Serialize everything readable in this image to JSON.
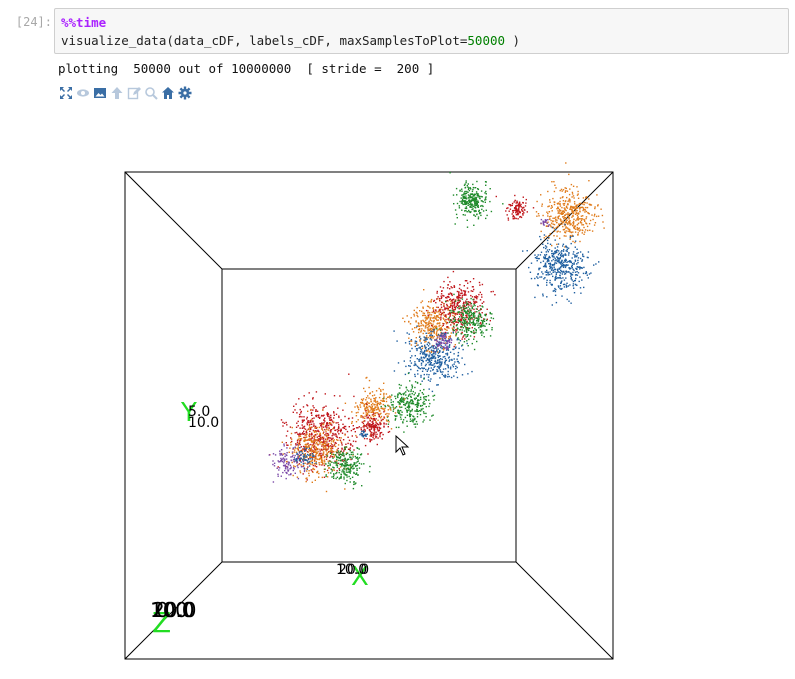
{
  "cell": {
    "prompt": "[24]:",
    "magic": "%%time",
    "code_prefix": "visualize_data(data_cDF, labels_cDF, maxSamplesToPlot=",
    "code_number": "50000",
    "code_suffix": " )"
  },
  "output": {
    "text": "plotting  50000 out of 10000000  [ stride =  200 ]"
  },
  "toolbar": {
    "icons": [
      "fullscreen-icon",
      "eye-icon",
      "image-icon",
      "up-arrow-icon",
      "edit-icon",
      "zoom-icon",
      "home-icon",
      "gear-icon"
    ]
  },
  "plot3d": {
    "axis_labels": {
      "x": "X",
      "y": "Y",
      "z": "Z"
    },
    "x_ticks": [
      "10.0",
      "20.0"
    ],
    "y_ticks": [
      "5.0",
      "10.0"
    ],
    "z_ticks": [
      "10.0",
      "20.0",
      "0.0"
    ],
    "axis_label_color": "#22dd22",
    "cluster_colors": {
      "blue": "#1f5fa0",
      "orange": "#e07b1a",
      "green": "#1e8a2a",
      "red": "#c0171c",
      "purple": "#7b4aa8"
    }
  }
}
